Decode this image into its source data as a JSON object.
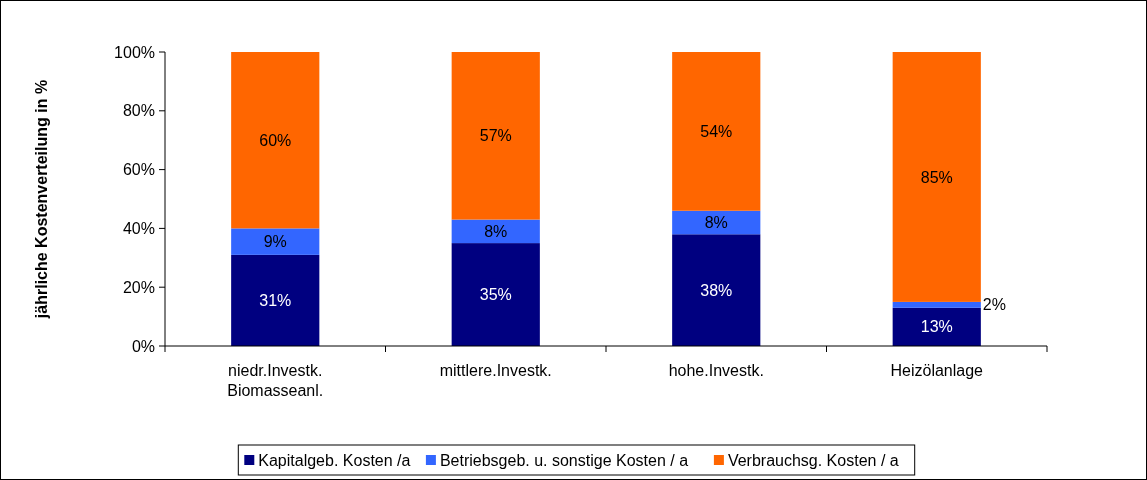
{
  "chart_data": {
    "type": "bar",
    "stacked": true,
    "ylabel": "jährliche Kostenverteilung in %",
    "categories": [
      "niedr.Investk. Biomasseanl.",
      "mittlere.Investk.",
      "hohe.Investk.",
      "Heizölanlage"
    ],
    "series": [
      {
        "name": "Kapitalgeb. Kosten /a",
        "color": "#000080",
        "values": [
          31,
          35,
          38,
          13
        ],
        "value_labels": [
          "31%",
          "35%",
          "38%",
          "13%"
        ]
      },
      {
        "name": "Betriebsgeb. u. sonstige Kosten / a",
        "color": "#3366ff",
        "values": [
          9,
          8,
          8,
          2
        ],
        "value_labels": [
          "9%",
          "8%",
          "8%",
          "2%"
        ]
      },
      {
        "name": "Verbrauchsg. Kosten / a",
        "color": "#ff6600",
        "values": [
          60,
          57,
          54,
          85
        ],
        "value_labels": [
          "60%",
          "57%",
          "54%",
          "85%"
        ]
      }
    ],
    "ylim": [
      0,
      100
    ],
    "yticks": [
      {
        "value": 0,
        "label": "0%"
      },
      {
        "value": 20,
        "label": "20%"
      },
      {
        "value": 40,
        "label": "40%"
      },
      {
        "value": 60,
        "label": "60%"
      },
      {
        "value": 80,
        "label": "80%"
      },
      {
        "value": 100,
        "label": "100%"
      }
    ],
    "legend": "bottom"
  }
}
